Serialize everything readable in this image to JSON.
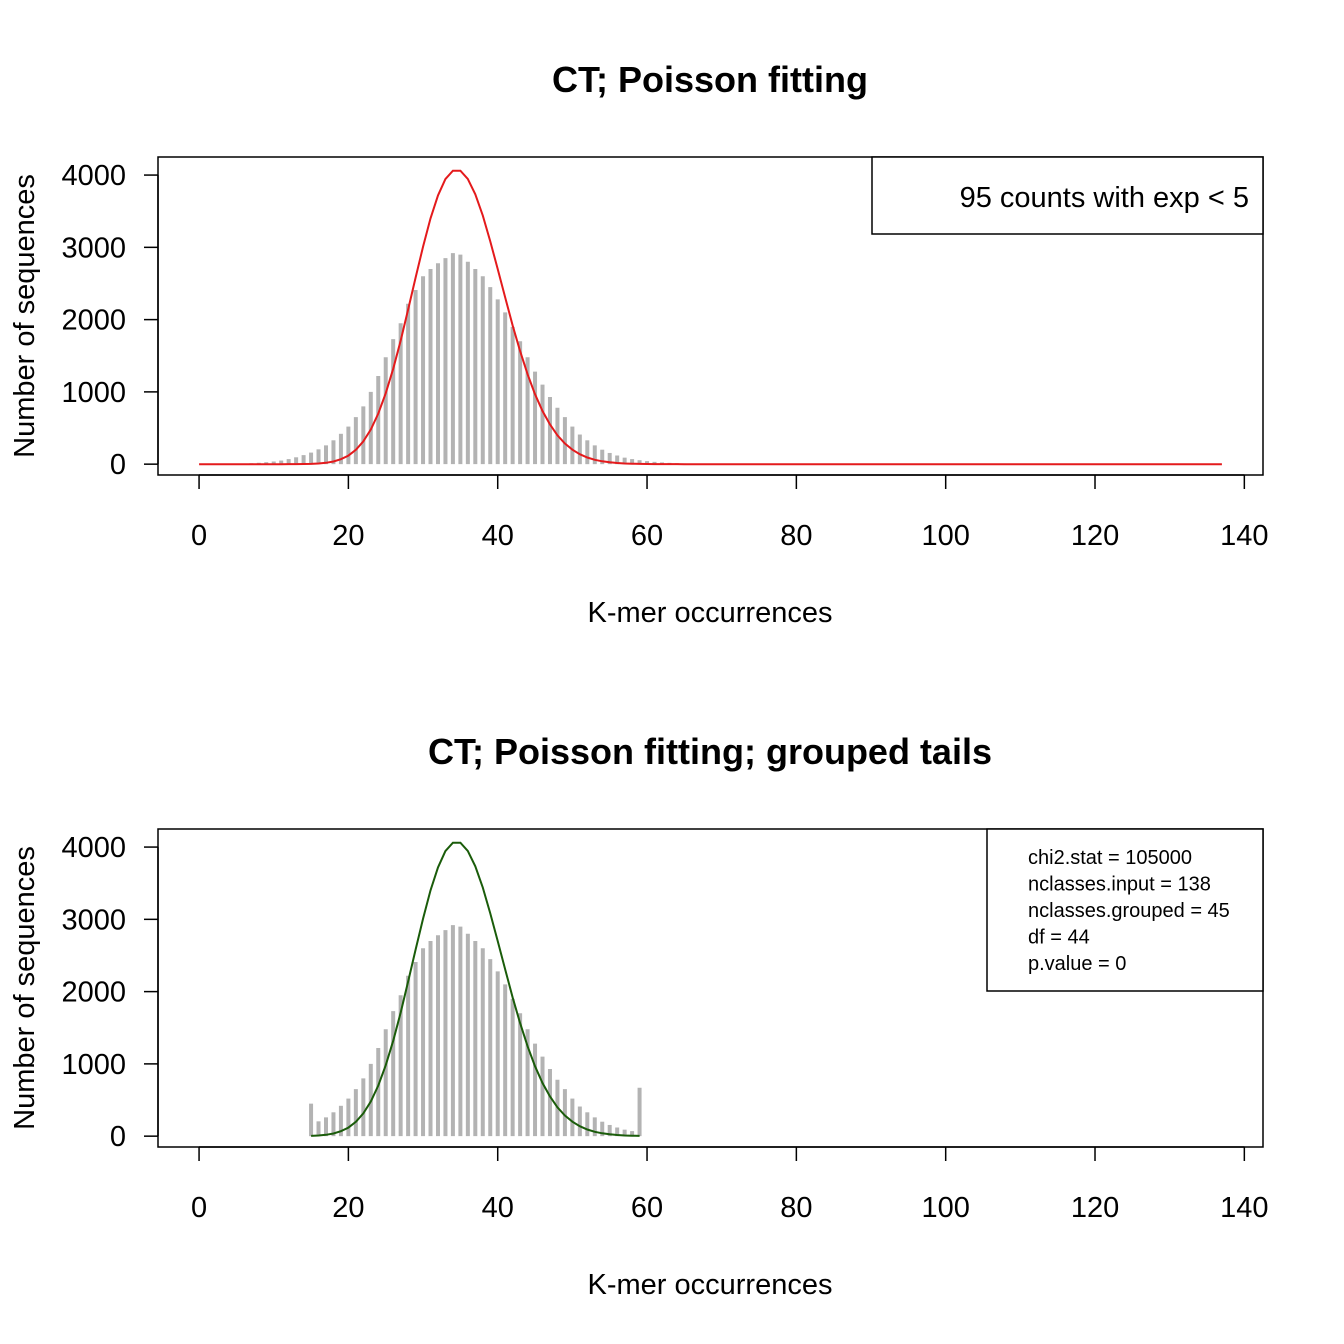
{
  "chart_data": [
    {
      "type": "bar",
      "title": "CT; Poisson fitting",
      "xlabel": "K-mer occurrences",
      "ylabel": "Number of sequences",
      "xlim": [
        -5.5,
        142.5
      ],
      "ylim": [
        -150,
        4250
      ],
      "xticks": [
        "0",
        "20",
        "40",
        "60",
        "80",
        "100",
        "120",
        "140"
      ],
      "yticks": [
        "0",
        "1000",
        "2000",
        "3000",
        "4000"
      ],
      "legend": {
        "position": "top-right",
        "lines": [
          "95 counts with exp < 5"
        ]
      },
      "bars": {
        "name": "observed",
        "color": "#b3b3b3",
        "x": [
          0,
          1,
          2,
          3,
          4,
          5,
          6,
          7,
          8,
          9,
          10,
          11,
          12,
          13,
          14,
          15,
          16,
          17,
          18,
          19,
          20,
          21,
          22,
          23,
          24,
          25,
          26,
          27,
          28,
          29,
          30,
          31,
          32,
          33,
          34,
          35,
          36,
          37,
          38,
          39,
          40,
          41,
          42,
          43,
          44,
          45,
          46,
          47,
          48,
          49,
          50,
          51,
          52,
          53,
          54,
          55,
          56,
          57,
          58,
          59,
          60,
          61,
          62,
          63,
          64,
          65,
          66,
          67,
          68,
          69,
          70,
          71,
          72,
          73,
          74,
          75,
          76,
          77,
          78,
          79,
          80,
          81,
          82,
          83,
          84,
          85,
          86,
          87,
          88,
          89,
          90,
          91,
          92,
          93,
          94,
          95,
          96,
          97,
          98,
          99,
          100,
          101,
          102,
          103,
          104,
          105,
          106,
          107,
          108,
          109,
          110,
          111,
          112,
          113,
          114,
          115,
          116,
          117,
          118,
          119,
          120,
          121,
          122,
          123,
          124,
          125,
          126,
          127,
          128,
          129,
          130,
          131,
          132,
          133,
          134,
          135,
          136,
          137
        ],
        "y": [
          0,
          0,
          1,
          2,
          4,
          6,
          9,
          13,
          19,
          27,
          37,
          50,
          70,
          95,
          125,
          160,
          205,
          260,
          330,
          420,
          520,
          650,
          800,
          1000,
          1220,
          1480,
          1730,
          1950,
          2220,
          2410,
          2600,
          2700,
          2780,
          2850,
          2920,
          2900,
          2800,
          2700,
          2600,
          2450,
          2280,
          2100,
          1900,
          1700,
          1480,
          1280,
          1100,
          930,
          780,
          650,
          520,
          410,
          330,
          260,
          200,
          155,
          120,
          90,
          70,
          55,
          42,
          32,
          24,
          18,
          13,
          10,
          7,
          5,
          4,
          3,
          2,
          2,
          1,
          1,
          1,
          1,
          0,
          0,
          0,
          0,
          0,
          0,
          0,
          0,
          0,
          0,
          0,
          0,
          0,
          0,
          0,
          0,
          0,
          0,
          0,
          0,
          0,
          0,
          0,
          0,
          0,
          0,
          0,
          0,
          0,
          0,
          0,
          0,
          0,
          0,
          0,
          0,
          0,
          0,
          0,
          0,
          0,
          0,
          0,
          0,
          0,
          0,
          0,
          0,
          0,
          0,
          0,
          0,
          0,
          0,
          0,
          0,
          0,
          0,
          0,
          0,
          0,
          0
        ]
      },
      "curve": {
        "name": "Poisson fit",
        "color": "#e41a1c",
        "lambda": 35,
        "peak": 4060,
        "x_range": [
          0,
          137
        ]
      }
    },
    {
      "type": "bar",
      "title": "CT; Poisson fitting; grouped tails",
      "xlabel": "K-mer occurrences",
      "ylabel": "Number of sequences",
      "xlim": [
        -5.5,
        142.5
      ],
      "ylim": [
        -150,
        4250
      ],
      "xticks": [
        "0",
        "20",
        "40",
        "60",
        "80",
        "100",
        "120",
        "140"
      ],
      "yticks": [
        "0",
        "1000",
        "2000",
        "3000",
        "4000"
      ],
      "legend": {
        "position": "top-right",
        "lines": [
          "chi2.stat = 105000",
          "nclasses.input = 138",
          "nclasses.grouped = 45",
          "df = 44",
          "p.value = 0"
        ]
      },
      "bars": {
        "name": "observed",
        "color": "#b3b3b3",
        "x": [
          15,
          16,
          17,
          18,
          19,
          20,
          21,
          22,
          23,
          24,
          25,
          26,
          27,
          28,
          29,
          30,
          31,
          32,
          33,
          34,
          35,
          36,
          37,
          38,
          39,
          40,
          41,
          42,
          43,
          44,
          45,
          46,
          47,
          48,
          49,
          50,
          51,
          52,
          53,
          54,
          55,
          56,
          57,
          58,
          59
        ],
        "y": [
          450,
          205,
          260,
          330,
          420,
          520,
          650,
          800,
          1000,
          1220,
          1480,
          1730,
          1950,
          2220,
          2410,
          2600,
          2700,
          2780,
          2850,
          2920,
          2900,
          2800,
          2700,
          2600,
          2450,
          2280,
          2100,
          1900,
          1700,
          1480,
          1280,
          1100,
          930,
          780,
          650,
          520,
          410,
          330,
          260,
          200,
          155,
          120,
          90,
          70,
          670
        ]
      },
      "curve": {
        "name": "Poisson fit",
        "color": "#1a5c0a",
        "lambda": 35,
        "peak": 4060,
        "x_range": [
          15,
          59
        ]
      }
    }
  ]
}
